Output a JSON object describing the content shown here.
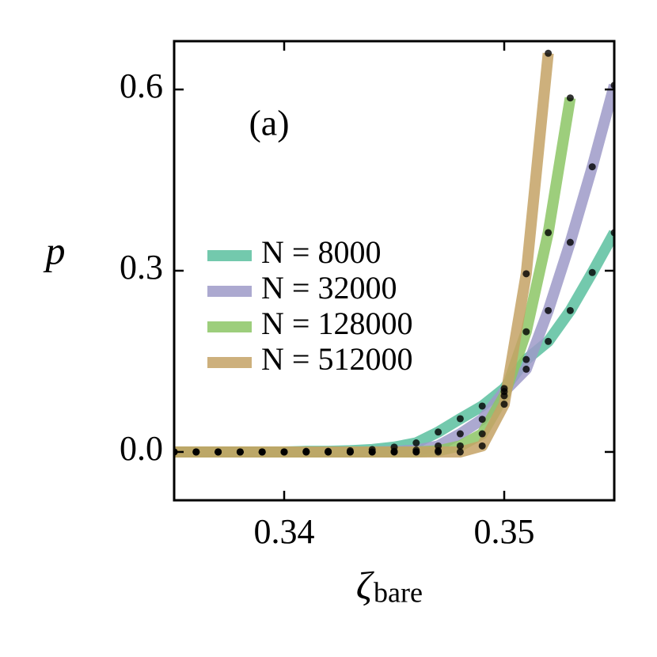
{
  "chart_data": {
    "type": "line",
    "annotation": "(a)",
    "ylabel": "p",
    "xlabel": "ζ",
    "xlabel_subscript": "bare",
    "x": [
      0.335,
      0.336,
      0.337,
      0.338,
      0.339,
      0.34,
      0.341,
      0.342,
      0.343,
      0.344,
      0.345,
      0.346,
      0.347,
      0.348,
      0.349,
      0.35,
      0.351,
      0.352,
      0.353,
      0.354,
      0.355
    ],
    "series": [
      {
        "name": "N = 8000",
        "color": "#5bbf9f",
        "values": [
          0,
          0,
          0,
          0,
          0,
          0,
          0.001,
          0.001,
          0.002,
          0.004,
          0.008,
          0.015,
          0.033,
          0.055,
          0.076,
          0.105,
          0.153,
          0.183,
          0.234,
          0.297,
          0.363
        ]
      },
      {
        "name": "N = 32000",
        "color": "#9e9ac8",
        "values": [
          0,
          0,
          0,
          0,
          0,
          0,
          0,
          0,
          0,
          0,
          0.001,
          0.003,
          0.01,
          0.03,
          0.054,
          0.1,
          0.137,
          0.234,
          0.347,
          0.472,
          0.607
        ]
      },
      {
        "name": "N = 128000",
        "color": "#8cc665",
        "values": [
          0,
          0,
          0,
          0,
          0,
          0,
          0,
          0,
          0,
          0,
          0,
          0,
          0.002,
          0.01,
          0.03,
          0.093,
          0.199,
          0.363,
          0.586,
          null,
          null
        ]
      },
      {
        "name": "N = 512000",
        "color": "#c4a265",
        "values": [
          0,
          0,
          0,
          0,
          0,
          0,
          0,
          0,
          0,
          0,
          0,
          0,
          0,
          0,
          0.01,
          0.079,
          0.295,
          0.66,
          null,
          null,
          null
        ]
      }
    ],
    "xlim": [
      0.335,
      0.355
    ],
    "ylim": [
      -0.08,
      0.68
    ],
    "xticks": [
      0.34,
      0.35
    ],
    "yticks": [
      {
        "value": 0,
        "label": "0.0"
      },
      {
        "value": 0.3,
        "label": "0.3"
      },
      {
        "value": 0.6,
        "label": "0.6"
      }
    ],
    "legend": "center-left"
  }
}
